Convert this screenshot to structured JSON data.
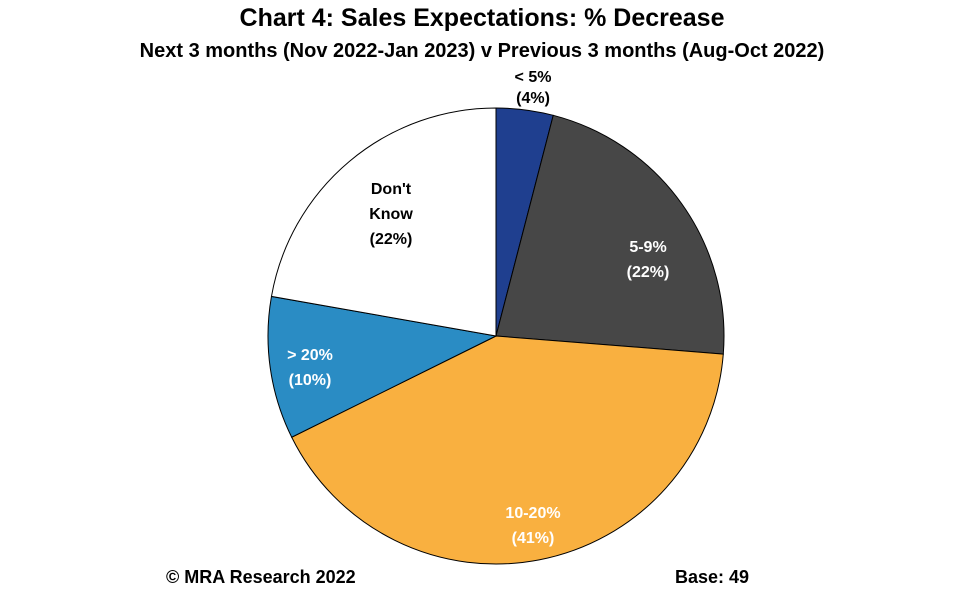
{
  "chart_data": {
    "type": "pie",
    "title": "Chart 4: Sales Expectations: % Decrease",
    "subtitle": "Next 3 months (Nov 2022-Jan 2023) v Previous 3 months (Aug-Oct 2022)",
    "slices": [
      {
        "label": "< 5%",
        "value": 4,
        "value_label": "(4%)",
        "color": "#1F3F8F",
        "text_color": "#000000",
        "label_lines": [
          "< 5%",
          "(4%)"
        ]
      },
      {
        "label": "5-9%",
        "value": 22,
        "value_label": "(22%)",
        "color": "#474747",
        "text_color": "#FFFFFF",
        "label_lines": [
          "5-9%",
          "(22%)"
        ]
      },
      {
        "label": "10-20%",
        "value": 41,
        "value_label": "(41%)",
        "color": "#F9B040",
        "text_color": "#FFFFFF",
        "label_lines": [
          "10-20%",
          "(41%)"
        ]
      },
      {
        "label": "> 20%",
        "value": 10,
        "value_label": "(10%)",
        "color": "#2A8CC4",
        "text_color": "#FFFFFF",
        "label_lines": [
          "> 20%",
          "(10%)"
        ]
      },
      {
        "label": "Don't Know",
        "value": 22,
        "value_label": "(22%)",
        "color": "#FFFFFF",
        "text_color": "#000000",
        "label_lines": [
          "Don't",
          "Know",
          "(22%)"
        ]
      }
    ]
  },
  "footer": {
    "copyright": "© MRA Research 2022",
    "base": "Base: 49"
  }
}
